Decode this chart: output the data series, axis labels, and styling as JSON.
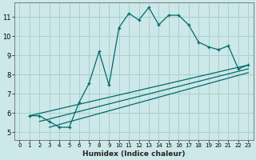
{
  "background_color": "#cde8e8",
  "grid_color": "#aad0d0",
  "line_color": "#006b6b",
  "xlabel": "Humidex (Indice chaleur)",
  "xlim": [
    -0.5,
    23.5
  ],
  "ylim": [
    4.6,
    11.75
  ],
  "yticks": [
    5,
    6,
    7,
    8,
    9,
    10,
    11
  ],
  "xticks": [
    0,
    1,
    2,
    3,
    4,
    5,
    6,
    7,
    8,
    9,
    10,
    11,
    12,
    13,
    14,
    15,
    16,
    17,
    18,
    19,
    20,
    21,
    22,
    23
  ],
  "curve1_x": [
    1,
    2,
    3,
    4,
    5,
    6,
    7,
    8,
    9,
    10,
    11,
    12,
    13,
    14,
    15,
    16,
    17,
    18,
    19,
    20,
    21,
    22,
    23
  ],
  "curve1_y": [
    5.85,
    5.85,
    5.55,
    5.25,
    5.25,
    6.55,
    7.55,
    9.2,
    7.45,
    10.45,
    11.2,
    10.85,
    11.5,
    10.6,
    11.1,
    11.1,
    10.6,
    9.7,
    9.45,
    9.3,
    9.5,
    8.3,
    8.5
  ],
  "line1_x": [
    1,
    23
  ],
  "line1_y": [
    5.85,
    8.5
  ],
  "line2_x": [
    2,
    23
  ],
  "line2_y": [
    5.55,
    8.3
  ],
  "line3_x": [
    3,
    23
  ],
  "line3_y": [
    5.25,
    8.1
  ]
}
